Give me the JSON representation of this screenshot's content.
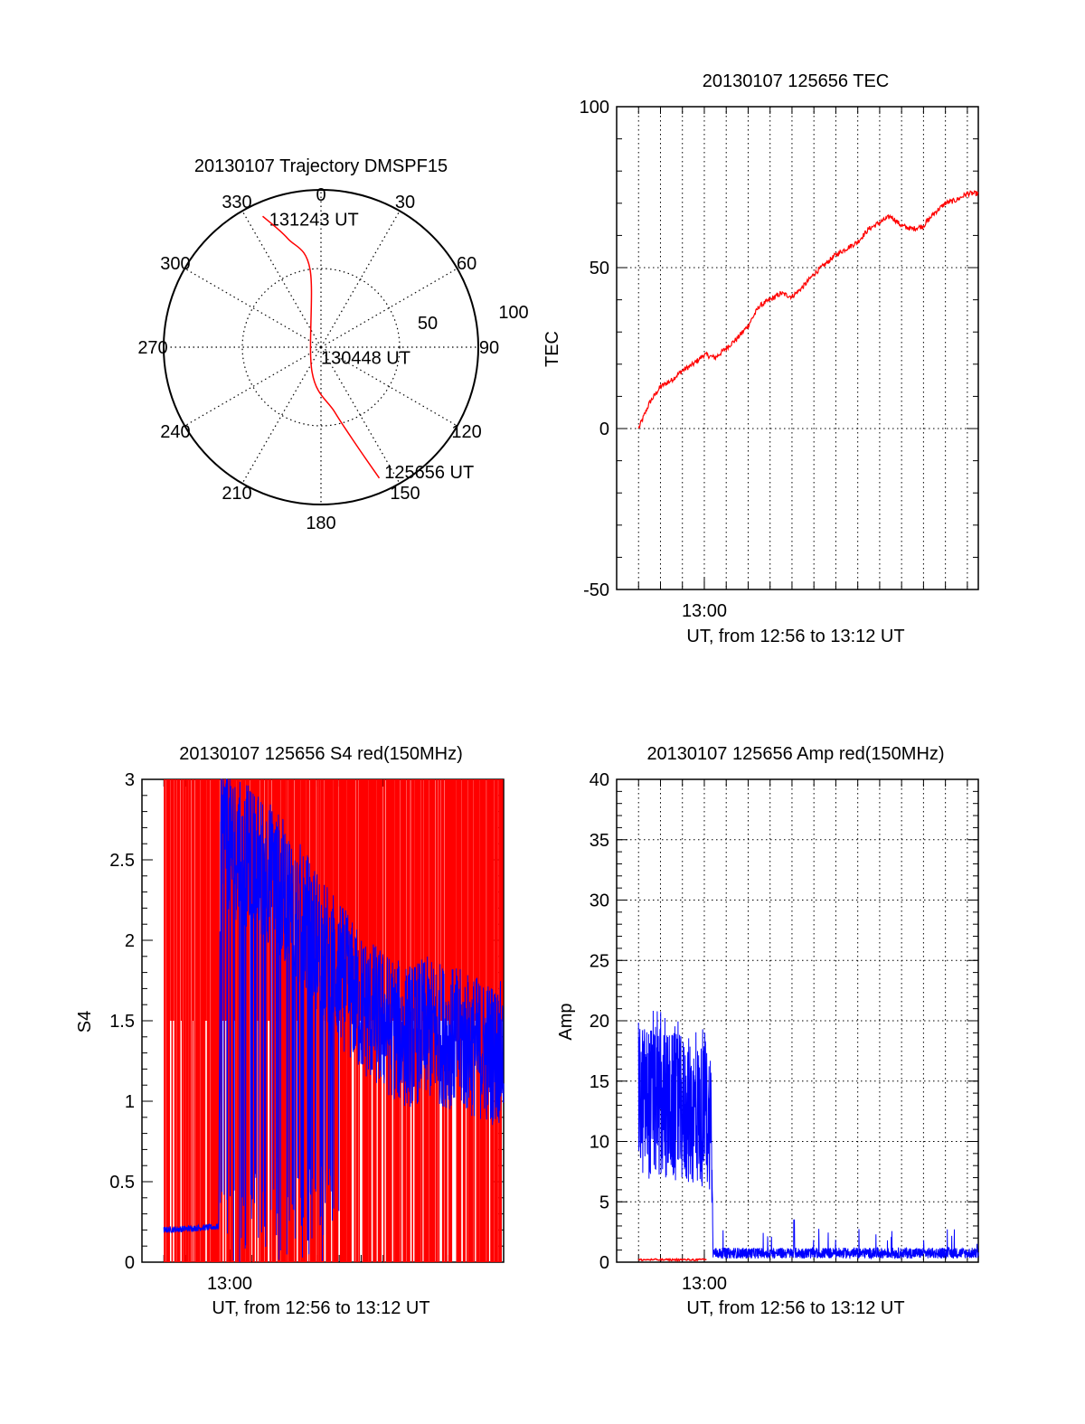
{
  "chart_data": [
    {
      "type": "polar-trajectory",
      "title": "20130107 Trajectory DMSPF15",
      "azimuth_labels": [
        "0",
        "30",
        "60",
        "90",
        "120",
        "150",
        "180",
        "210",
        "240",
        "270",
        "300",
        "330"
      ],
      "radial_labels": [
        "50",
        "100"
      ],
      "series": [
        {
          "color": "#ff0000",
          "points": [
            {
              "az": 336,
              "el": 8
            },
            {
              "az": 343,
              "el": 25
            },
            {
              "az": 352,
              "el": 45
            },
            {
              "az": 200,
              "el": 75
            },
            {
              "az": 168,
              "el": 52
            },
            {
              "az": 160,
              "el": 30
            },
            {
              "az": 156,
              "el": 8
            }
          ]
        }
      ],
      "annotations": [
        {
          "text": "131243 UT",
          "az": 338,
          "el": 11
        },
        {
          "text": "130448 UT",
          "az": 180,
          "el": 84
        },
        {
          "text": "125656 UT",
          "az": 153,
          "el": 10
        }
      ]
    },
    {
      "type": "line",
      "title": "20130107 125656 TEC",
      "xlabel": "UT, from 12:56 to 13:12 UT",
      "ylabel": "TEC",
      "xlim": [
        0,
        16.5
      ],
      "ylim": [
        -50,
        100
      ],
      "yticks": [
        "100",
        "50",
        "0",
        "-50"
      ],
      "xticks": [
        "13:00"
      ],
      "grid": true,
      "series": [
        {
          "color": "#ff0000",
          "x": [
            1,
            1.5,
            2,
            2.5,
            3,
            3.5,
            4,
            4.5,
            5,
            5.5,
            6,
            6.5,
            7,
            7.5,
            8,
            8.5,
            9,
            9.5,
            10,
            10.5,
            11,
            11.5,
            12,
            12.5,
            13,
            13.5,
            14,
            14.5,
            15,
            15.5,
            16,
            16.5
          ],
          "y": [
            0,
            8,
            13,
            15,
            18,
            20,
            23,
            22,
            25,
            28,
            32,
            38,
            40,
            42,
            41,
            44,
            48,
            51,
            54,
            56,
            58,
            62,
            64,
            66,
            63,
            62,
            63,
            67,
            70,
            71,
            73,
            73
          ]
        }
      ]
    },
    {
      "type": "line",
      "title": "20130107 125656 S4 red(150MHz)",
      "xlabel": "UT, from 12:56 to 13:12 UT",
      "ylabel": "S4",
      "xlim": [
        0,
        16.5
      ],
      "ylim": [
        0,
        3
      ],
      "yticks": [
        "3",
        "2.5",
        "2",
        "1.5",
        "1",
        "0.5",
        "0"
      ],
      "xticks": [
        "13:00"
      ],
      "series": [
        {
          "name": "red",
          "color": "#ff0000",
          "spike_min": 0,
          "spike_max": 3
        },
        {
          "color": "#0000ff",
          "x": [
            1,
            3.5,
            3.6,
            4,
            5,
            6,
            7,
            8,
            9,
            10,
            11,
            12,
            13,
            14,
            15,
            16,
            16.5
          ],
          "y": [
            0.2,
            0.22,
            2.8,
            2.6,
            2.5,
            2.4,
            2.2,
            2.0,
            1.8,
            1.6,
            1.5,
            1.4,
            1.45,
            1.4,
            1.35,
            1.3,
            1.3
          ]
        }
      ]
    },
    {
      "type": "line",
      "title": "20130107 125656 Amp red(150MHz)",
      "xlabel": "UT, from 12:56 to 13:12 UT",
      "ylabel": "Amp",
      "xlim": [
        0,
        16.5
      ],
      "ylim": [
        0,
        40
      ],
      "yticks": [
        "40",
        "35",
        "30",
        "25",
        "20",
        "15",
        "10",
        "5",
        "0"
      ],
      "xticks": [
        "13:00"
      ],
      "grid": true,
      "series": [
        {
          "color": "#0000ff",
          "x": [
            1,
            4.3,
            4.4,
            16.5
          ],
          "y_low": [
            7,
            6,
            0.3,
            0.3
          ],
          "y_high": [
            20,
            18,
            1.2,
            1.2
          ]
        },
        {
          "color": "#ff0000",
          "x": [
            1,
            4.1
          ],
          "y": [
            0.2,
            0.2
          ]
        }
      ]
    }
  ]
}
